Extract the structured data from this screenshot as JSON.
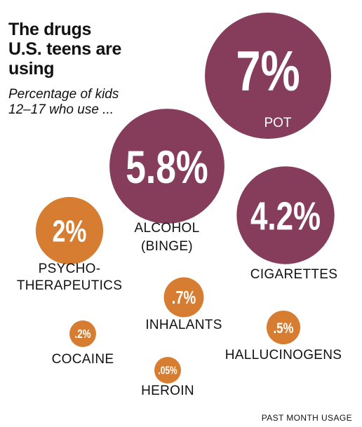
{
  "title": "The drugs U.S. teens are using",
  "subtitle": "Percentage of kids 12–17 who use ...",
  "footnote": "PAST MONTH USAGE",
  "colors": {
    "high": "#853d5b",
    "low": "#d67d32",
    "text": "#111111",
    "bubble_text": "#ffffff"
  },
  "chart_data": {
    "type": "bubble",
    "title": "The drugs U.S. teens are using",
    "subtitle": "Percentage of kids 12–17 who use ...",
    "unit": "%",
    "footnote": "PAST MONTH USAGE",
    "items": [
      {
        "label": "POT",
        "value": 7,
        "display": "7%",
        "color": "#853d5b"
      },
      {
        "label": "ALCOHOL (BINGE)",
        "value": 5.8,
        "display": "5.8%",
        "color": "#853d5b"
      },
      {
        "label": "CIGARETTES",
        "value": 4.2,
        "display": "4.2%",
        "color": "#853d5b"
      },
      {
        "label": "PSYCHO-THERAPEUTICS",
        "value": 2,
        "display": "2%",
        "color": "#d67d32"
      },
      {
        "label": "INHALANTS",
        "value": 0.7,
        "display": ".7%",
        "color": "#d67d32"
      },
      {
        "label": "HALLUCINOGENS",
        "value": 0.5,
        "display": ".5%",
        "color": "#d67d32"
      },
      {
        "label": "COCAINE",
        "value": 0.2,
        "display": ".2%",
        "color": "#d67d32"
      },
      {
        "label": "HEROIN",
        "value": 0.05,
        "display": ".05%",
        "color": "#d67d32"
      }
    ]
  }
}
